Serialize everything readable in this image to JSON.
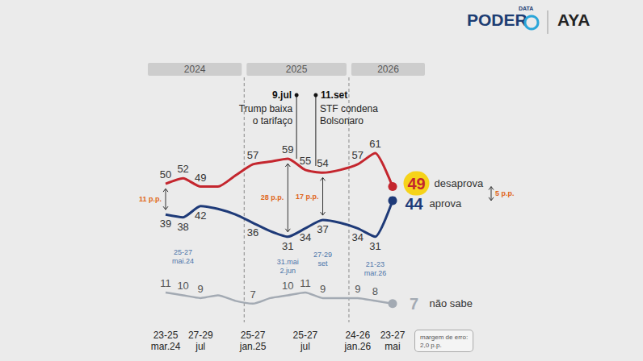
{
  "chart_data": {
    "type": "line",
    "logos": {
      "main": "PODER",
      "main_sub": "DATA",
      "partner": "AYA"
    },
    "periods": [
      "2024",
      "2025",
      "2026"
    ],
    "period_breaks": [
      4.5,
      10.5
    ],
    "categories": [
      "23-25 mar.24",
      null,
      "27-29 jul",
      null,
      null,
      "25-27 jan.25",
      null,
      null,
      "25-27 jul",
      null,
      null,
      "24-26 jan.26",
      null,
      "23-27 mai"
    ],
    "inner_date_labels": [
      null,
      "25-27 mai.24",
      null,
      null,
      null,
      null,
      null,
      "31.mai 2.jun",
      null,
      "27-29 set",
      null,
      null,
      "21-23 mar.26",
      null
    ],
    "events": [
      {
        "x": 7.5,
        "date": "9.jul",
        "text": "Trump baixa o tarifaço"
      },
      {
        "x": 8.6,
        "date": "11.set",
        "text": "STF condena Bolsonaro"
      }
    ],
    "gaps": [
      {
        "at": 0,
        "label": "11 p.p."
      },
      {
        "at": 7,
        "label": "28 p.p."
      },
      {
        "at": 9,
        "label": "17 p.p."
      },
      {
        "at": 13,
        "label": "5 p.p."
      }
    ],
    "series": [
      {
        "name": "desaprova",
        "color": "#c4262e",
        "values": [
          50,
          52,
          49,
          49,
          53,
          57,
          58,
          59,
          55,
          54,
          55,
          57,
          61,
          49
        ],
        "value_labels": [
          "50",
          "52",
          "49",
          null,
          null,
          "57",
          null,
          "59",
          "55",
          "54",
          null,
          "57",
          "61",
          "49"
        ]
      },
      {
        "name": "aprova",
        "color": "#1e3a78",
        "values": [
          39,
          38,
          42,
          41,
          39,
          36,
          33,
          31,
          34,
          37,
          36,
          34,
          31,
          44
        ],
        "value_labels": [
          "39",
          "38",
          "42",
          null,
          null,
          "36",
          null,
          "31",
          "34",
          "37",
          null,
          "34",
          "31",
          "44"
        ]
      },
      {
        "name": "não sabe",
        "color": "#a3aab3",
        "values": [
          11,
          10,
          9,
          10,
          8,
          7,
          9,
          10,
          11,
          9,
          9,
          9,
          8,
          7
        ],
        "value_labels": [
          "11",
          "10",
          "9",
          null,
          null,
          "7",
          null,
          "10",
          "11",
          "9",
          null,
          "9",
          "8",
          "7"
        ]
      }
    ],
    "ylim": [
      0,
      70
    ],
    "tick_labels": "x",
    "grid": false,
    "data_labels": true,
    "footnote": "margem de erro: 2,0 p.p."
  }
}
